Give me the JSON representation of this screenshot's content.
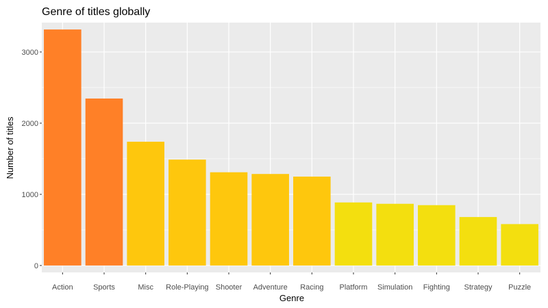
{
  "chart_data": {
    "type": "bar",
    "title": "Genre of titles globally",
    "xlabel": "Genre",
    "ylabel": "Number of titles",
    "categories": [
      "Action",
      "Sports",
      "Misc",
      "Role-Playing",
      "Shooter",
      "Adventure",
      "Racing",
      "Platform",
      "Simulation",
      "Fighting",
      "Strategy",
      "Puzzle"
    ],
    "values": [
      3316,
      2346,
      1739,
      1488,
      1310,
      1286,
      1249,
      886,
      867,
      848,
      681,
      582
    ],
    "ylim": [
      -97,
      3413
    ],
    "yticks": [
      0,
      1000,
      2000,
      3000
    ],
    "ytick_labels": [
      "0",
      "1000",
      "2000",
      "3000"
    ],
    "bar_colors": [
      "#ff8027",
      "#ff8027",
      "#fec70d",
      "#fec70d",
      "#fec70d",
      "#fec70d",
      "#fec70d",
      "#f3df0f",
      "#f3df0f",
      "#f3df0f",
      "#f3df0f",
      "#f3df0f"
    ],
    "panel_background": "#ebebeb",
    "grid": true,
    "grid_color": "#ffffff",
    "legend": "none"
  }
}
